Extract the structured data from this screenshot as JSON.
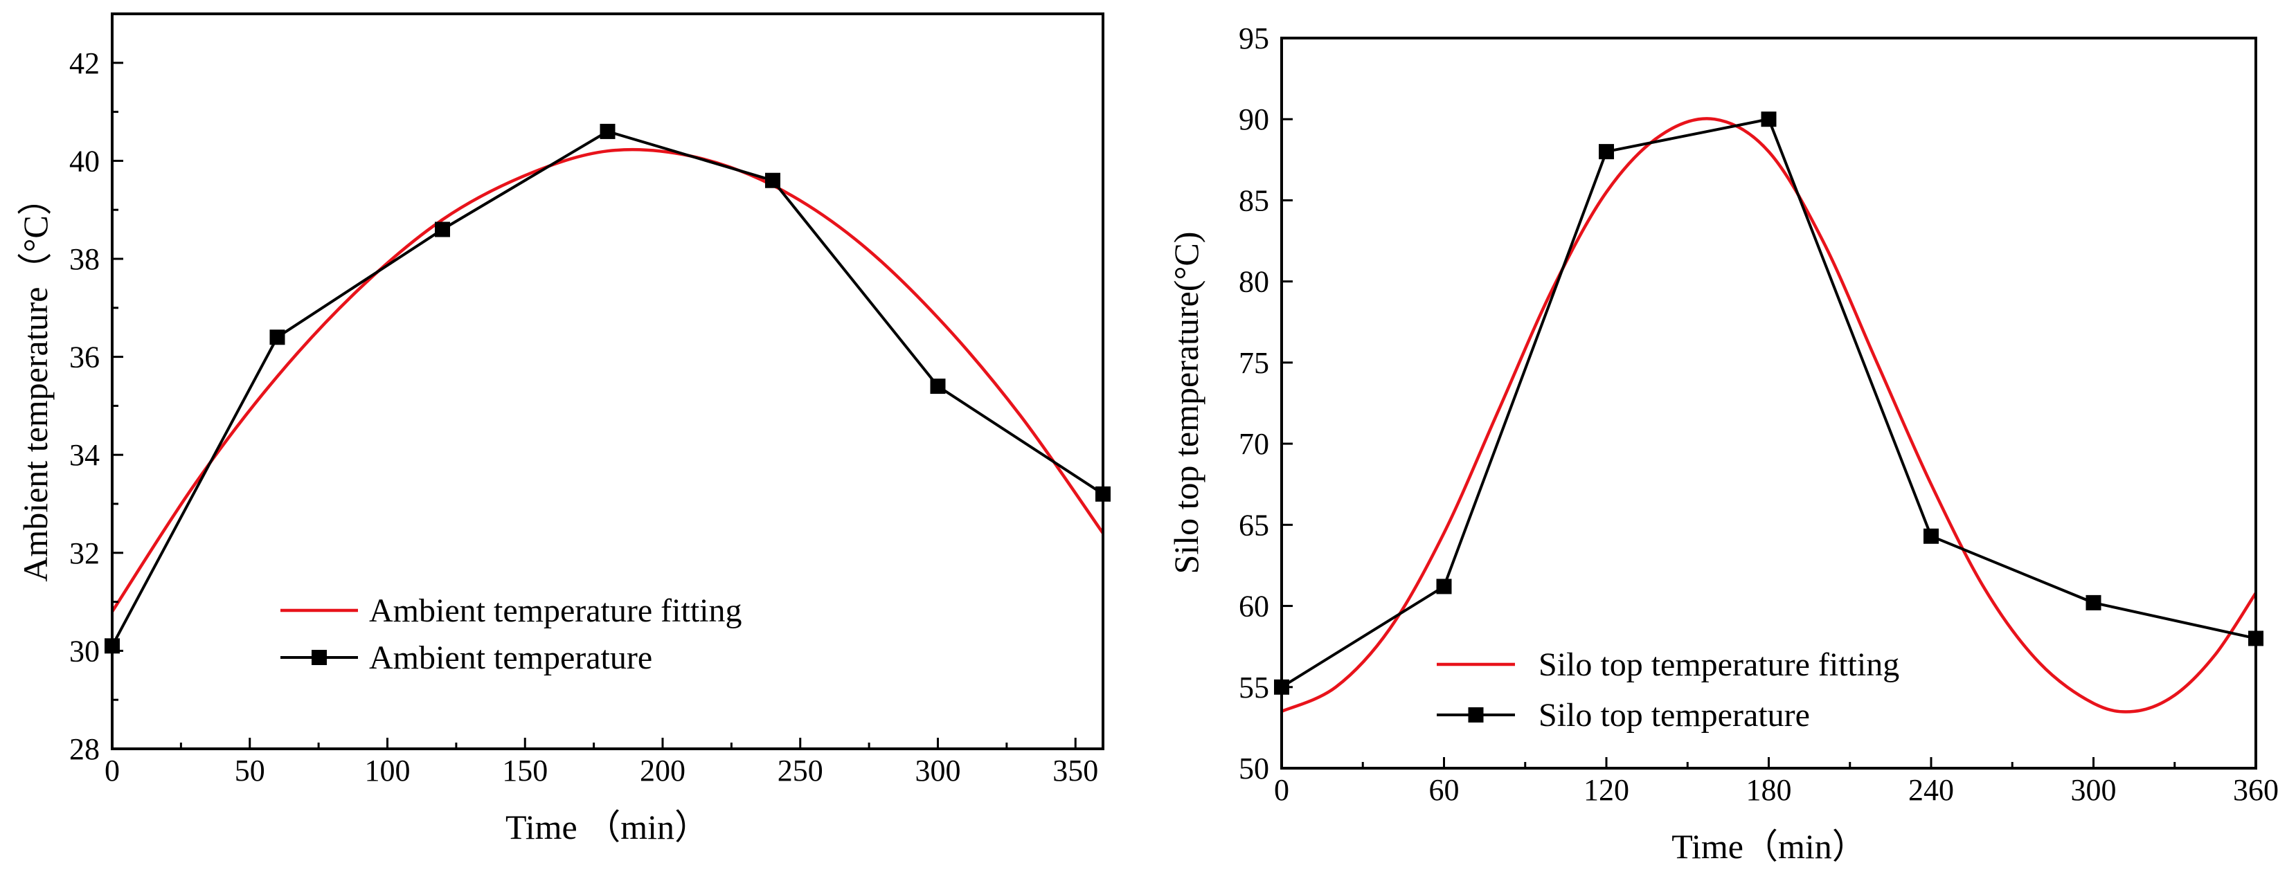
{
  "chart_data": [
    {
      "type": "line",
      "title": "",
      "xlabel": "Time （min）",
      "ylabel": "Ambient temperature（°C）",
      "xlim": [
        0,
        360
      ],
      "ylim": [
        28,
        43
      ],
      "xticks": [
        0,
        50,
        100,
        150,
        200,
        250,
        300,
        350
      ],
      "yticks": [
        28,
        30,
        32,
        34,
        36,
        38,
        40,
        42
      ],
      "grid": false,
      "legend_position": "lower-left",
      "series": [
        {
          "name": "Ambient temperature fitting",
          "style": "smooth-line",
          "color": "#e8131b",
          "x": [
            0,
            30,
            60,
            90,
            120,
            150,
            180,
            210,
            240,
            270,
            300,
            330,
            360
          ],
          "y": [
            30.8,
            33.4,
            35.6,
            37.4,
            38.8,
            39.7,
            40.2,
            40.1,
            39.5,
            38.4,
            36.8,
            34.8,
            32.4
          ]
        },
        {
          "name": "Ambient temperature",
          "style": "line-square-markers",
          "color": "#000000",
          "x": [
            0,
            60,
            120,
            180,
            240,
            300,
            360
          ],
          "y": [
            30.1,
            36.4,
            38.6,
            40.6,
            39.6,
            35.4,
            33.2
          ]
        }
      ]
    },
    {
      "type": "line",
      "title": "",
      "xlabel": "Time（min）",
      "ylabel": "Silo top temperature(°C)",
      "xlim": [
        0,
        360
      ],
      "ylim": [
        50,
        95
      ],
      "xticks": [
        0,
        60,
        120,
        180,
        240,
        300,
        360
      ],
      "yticks": [
        50,
        55,
        60,
        65,
        70,
        75,
        80,
        85,
        90,
        95
      ],
      "grid": false,
      "legend_position": "lower-left",
      "series": [
        {
          "name": "Silo top temperature fitting",
          "style": "smooth-line",
          "color": "#e8131b",
          "x": [
            0,
            20,
            40,
            60,
            80,
            100,
            120,
            140,
            160,
            180,
            200,
            220,
            240,
            260,
            280,
            300,
            315,
            330,
            345,
            360
          ],
          "y": [
            53.5,
            55.0,
            58.6,
            64.5,
            72.0,
            79.5,
            85.5,
            89.0,
            90.0,
            88.0,
            82.5,
            75.0,
            67.5,
            61.0,
            56.5,
            54.0,
            53.5,
            54.5,
            57.0,
            60.8
          ]
        },
        {
          "name": "Silo top temperature",
          "style": "line-square-markers",
          "color": "#000000",
          "x": [
            0,
            60,
            120,
            180,
            240,
            300,
            360
          ],
          "y": [
            55.0,
            61.2,
            88.0,
            90.0,
            64.3,
            60.2,
            58.0
          ]
        }
      ]
    }
  ]
}
